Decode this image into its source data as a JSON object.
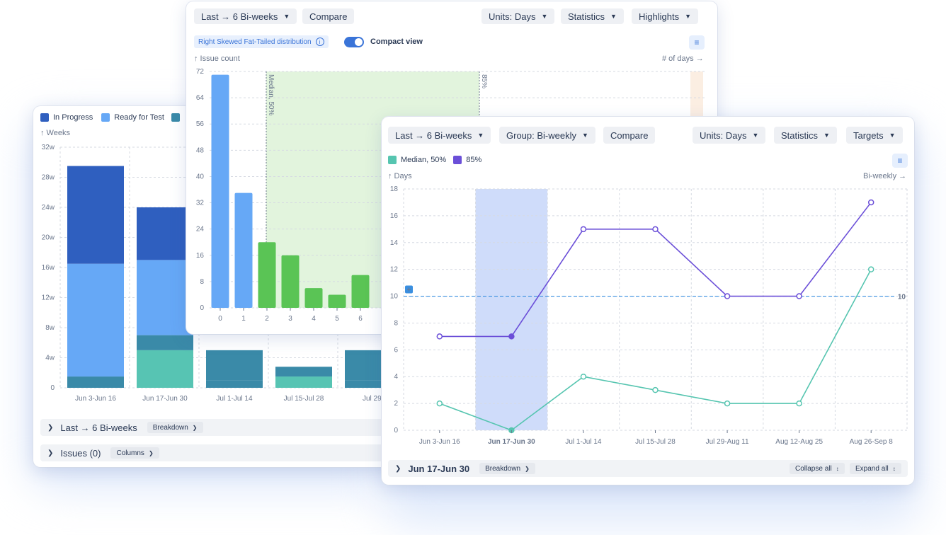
{
  "colors": {
    "in_progress": "#2f5fbf",
    "ready_for_test": "#66a8f6",
    "teal_dark": "#3a8aa8",
    "teal_light": "#57c4b3",
    "hist_blue": "#66a8f6",
    "hist_green": "#5ac455",
    "median": "#56c5b0",
    "p85": "#6b4fd8",
    "target": "#3a8fe0",
    "highlight": "#cfdcfa"
  },
  "back_card": {
    "legend": {
      "in_progress": "In Progress",
      "ready_for_test": "Ready for Test"
    },
    "y_axis_label": "↑ Weeks",
    "sections": {
      "period_label": "Last → 6 Bi-weeks",
      "breakdown": "Breakdown",
      "issues": "Issues (0)",
      "columns": "Columns"
    }
  },
  "mid_card": {
    "toolbar": {
      "range": "Last → 6 Bi-weeks",
      "compare": "Compare",
      "units": "Units: Days",
      "statistics": "Statistics",
      "highlights": "Highlights"
    },
    "distribution_badge": "Right Skewed Fat-Tailed distribution",
    "compact_view": "Compact view",
    "y_axis_label": "↑ Issue count",
    "x_axis_label": "# of days →",
    "marker_median": "Median, 50%",
    "marker_85": "85%"
  },
  "front_card": {
    "toolbar": {
      "range": "Last → 6 Bi-weeks",
      "group": "Group: Bi-weekly",
      "compare": "Compare",
      "units": "Units: Days",
      "statistics": "Statistics",
      "targets": "Targets"
    },
    "y_axis_label": "↑ Days",
    "x_axis_label": "Bi-weekly →",
    "target_label": "10",
    "footer": {
      "period": "Jun 17-Jun 30",
      "breakdown": "Breakdown",
      "collapse": "Collapse all",
      "expand": "Expand all"
    }
  },
  "chart_data": [
    {
      "type": "bar",
      "stacked": true,
      "categories": [
        "Jun 3-Jun 16",
        "Jun 17-Jun 30",
        "Jul 1-Jul 14",
        "Jul 15-Jul 28",
        "Jul 29-"
      ],
      "series": [
        {
          "name": "",
          "values": [
            1.5,
            0,
            1,
            0,
            1
          ]
        },
        {
          "name": "",
          "values": [
            0,
            5,
            0,
            1.5,
            0
          ]
        },
        {
          "name": "",
          "values": [
            0,
            2,
            4,
            1.3,
            4
          ]
        },
        {
          "name": "Ready for Test",
          "values": [
            15,
            10,
            null,
            null,
            null
          ]
        },
        {
          "name": "In Progress",
          "values": [
            13,
            7,
            null,
            null,
            null
          ]
        }
      ],
      "yticks": [
        "0",
        "4w",
        "8w",
        "12w",
        "16w",
        "20w",
        "24w",
        "28w",
        "32w"
      ],
      "ylim": [
        0,
        32
      ],
      "ylabel": "↑ Weeks"
    },
    {
      "type": "bar",
      "categories": [
        "0",
        "1",
        "2",
        "3",
        "4",
        "5",
        "6"
      ],
      "values": [
        71,
        35,
        20,
        16,
        6,
        4,
        10
      ],
      "yticks": [
        "0",
        "8",
        "16",
        "24",
        "32",
        "40",
        "48",
        "56",
        "64",
        "72"
      ],
      "ylim": [
        0,
        72
      ],
      "ylabel": "↑ Issue count",
      "xlabel": "# of days →"
    },
    {
      "type": "line",
      "categories": [
        "Jun 3-Jun 16",
        "Jun 17-Jun 30",
        "Jul 1-Jul 14",
        "Jul 15-Jul 28",
        "Jul 29-Aug 11",
        "Aug 12-Aug 25",
        "Aug 26-Sep 8"
      ],
      "series": [
        {
          "name": "Median, 50%",
          "values": [
            2,
            0,
            4,
            3,
            2,
            2,
            12
          ]
        },
        {
          "name": "85%",
          "values": [
            7,
            7,
            15,
            15,
            10,
            10,
            17
          ]
        }
      ],
      "target": 10,
      "selected_category": "Jun 17-Jun 30",
      "yticks": [
        "0",
        "2",
        "4",
        "6",
        "8",
        "10",
        "12",
        "14",
        "16",
        "18"
      ],
      "ylim": [
        0,
        18
      ],
      "ylabel": "↑ Days",
      "xlabel": "Bi-weekly →"
    }
  ]
}
